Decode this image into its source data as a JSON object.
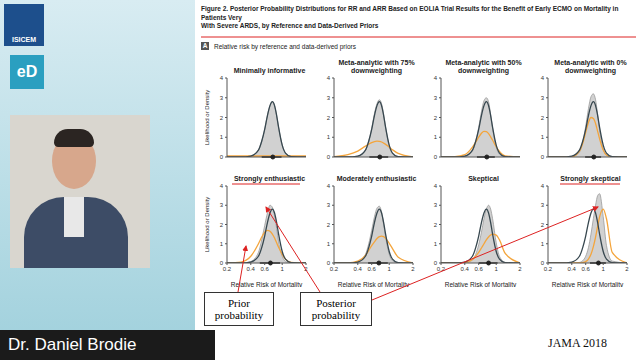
{
  "slide": {
    "logo": "ISICEM",
    "badge": "eD",
    "speaker": "Dr. Daniel Brodie",
    "figure_title": [
      "Figure 2. Posterior Probability Distributions for RR and ARR Based on EOLIA Trial Results for the Benefit of Early ECMO on Mortality in Patients Very",
      "With Severe ARDS, by Reference and Data-Derived Priors"
    ],
    "panel_label": "A",
    "panel_title": "Relative risk by reference and data-derived priors",
    "annotations": [
      "Prior probability",
      "Posterior probability"
    ],
    "source": "JAMA 2018"
  },
  "chart_data": [
    {
      "type": "line",
      "title": "Minimally informative",
      "x": [
        0.2,
        0.3,
        0.4,
        0.5,
        0.55,
        0.6,
        0.65,
        0.7,
        0.75,
        0.8,
        0.85,
        0.9,
        1.0,
        1.1,
        1.3,
        2.0
      ],
      "xlim": [
        0.2,
        2
      ],
      "xticks": [
        0.2,
        0.4,
        0.6,
        1,
        2
      ],
      "ylim": [
        0,
        4
      ],
      "yticks": [
        0,
        1,
        2,
        3,
        4
      ],
      "log": "x",
      "tick_labels": "y",
      "ylabel": "Likelihood or Density",
      "credible_interval": [
        0.55,
        0.98
      ],
      "median": 0.76,
      "series": [
        {
          "type": "area",
          "color": "#c9c9c9",
          "values": [
            0,
            0,
            0.05,
            0.35,
            0.8,
            1.4,
            2.1,
            2.6,
            2.8,
            2.6,
            2.1,
            1.5,
            0.6,
            0.2,
            0.02,
            0
          ]
        },
        {
          "type": "line",
          "color": "#f4a53c",
          "values": [
            0.05,
            0.05,
            0.05,
            0.05,
            0.05,
            0.05,
            0.05,
            0.05,
            0.05,
            0.05,
            0.05,
            0.05,
            0.05,
            0.05,
            0.05,
            0.05
          ]
        },
        {
          "type": "line",
          "color": "#37474f",
          "values": [
            0,
            0,
            0.05,
            0.35,
            0.8,
            1.4,
            2.1,
            2.6,
            2.8,
            2.6,
            2.1,
            1.5,
            0.6,
            0.2,
            0.02,
            0
          ]
        }
      ]
    },
    {
      "type": "line",
      "title": "Meta-analytic with 75% downweighting",
      "x": [
        0.2,
        0.3,
        0.4,
        0.5,
        0.55,
        0.6,
        0.65,
        0.7,
        0.75,
        0.8,
        0.85,
        0.9,
        1.0,
        1.1,
        1.3,
        2.0
      ],
      "xlim": [
        0.2,
        2
      ],
      "xticks": [
        0.2,
        0.4,
        0.6,
        1,
        2
      ],
      "ylim": [
        0,
        4
      ],
      "yticks": [
        0,
        1,
        2,
        3,
        4
      ],
      "log": "x",
      "tick_labels": "y",
      "credible_interval": [
        0.56,
        0.97
      ],
      "median": 0.76,
      "series": [
        {
          "type": "area",
          "color": "#c9c9c9",
          "values": [
            0,
            0,
            0.04,
            0.33,
            0.8,
            1.45,
            2.2,
            2.7,
            2.9,
            2.7,
            2.15,
            1.5,
            0.55,
            0.17,
            0.01,
            0
          ]
        },
        {
          "type": "line",
          "color": "#f4a53c",
          "values": [
            0.02,
            0.12,
            0.3,
            0.55,
            0.65,
            0.73,
            0.78,
            0.8,
            0.79,
            0.76,
            0.7,
            0.64,
            0.5,
            0.37,
            0.18,
            0.01
          ]
        },
        {
          "type": "line",
          "color": "#37474f",
          "values": [
            0,
            0,
            0.05,
            0.35,
            0.8,
            1.4,
            2.1,
            2.6,
            2.8,
            2.6,
            2.1,
            1.5,
            0.6,
            0.2,
            0.02,
            0
          ]
        }
      ]
    },
    {
      "type": "line",
      "title": "Meta-analytic with 50% downweighting",
      "x": [
        0.2,
        0.3,
        0.4,
        0.5,
        0.55,
        0.6,
        0.65,
        0.7,
        0.75,
        0.8,
        0.85,
        0.9,
        1.0,
        1.1,
        1.3,
        2.0
      ],
      "xlim": [
        0.2,
        2
      ],
      "xticks": [
        0.2,
        0.4,
        0.6,
        1,
        2
      ],
      "ylim": [
        0,
        4
      ],
      "yticks": [
        0,
        1,
        2,
        3,
        4
      ],
      "log": "x",
      "tick_labels": "y",
      "credible_interval": [
        0.57,
        0.96
      ],
      "median": 0.76,
      "series": [
        {
          "type": "area",
          "color": "#c9c9c9",
          "values": [
            0,
            0,
            0.03,
            0.3,
            0.8,
            1.5,
            2.3,
            2.85,
            3.0,
            2.8,
            2.15,
            1.45,
            0.5,
            0.14,
            0.01,
            0
          ]
        },
        {
          "type": "line",
          "color": "#f4a53c",
          "values": [
            0,
            0.02,
            0.12,
            0.5,
            0.75,
            1.0,
            1.2,
            1.3,
            1.28,
            1.18,
            1.02,
            0.85,
            0.52,
            0.28,
            0.06,
            0
          ]
        },
        {
          "type": "line",
          "color": "#37474f",
          "values": [
            0,
            0,
            0.05,
            0.35,
            0.8,
            1.4,
            2.1,
            2.6,
            2.8,
            2.6,
            2.1,
            1.5,
            0.6,
            0.2,
            0.02,
            0
          ]
        }
      ]
    },
    {
      "type": "line",
      "title": "Meta-analytic with 0% downweighting",
      "x": [
        0.2,
        0.3,
        0.4,
        0.5,
        0.55,
        0.6,
        0.65,
        0.7,
        0.75,
        0.8,
        0.85,
        0.9,
        1.0,
        1.1,
        1.3,
        2.0
      ],
      "xlim": [
        0.2,
        2
      ],
      "xticks": [
        0.2,
        0.4,
        0.6,
        1,
        2
      ],
      "ylim": [
        0,
        4
      ],
      "yticks": [
        0,
        1,
        2,
        3,
        4
      ],
      "log": "x",
      "tick_labels": "y",
      "credible_interval": [
        0.59,
        0.94
      ],
      "median": 0.76,
      "series": [
        {
          "type": "area",
          "color": "#c9c9c9",
          "values": [
            0,
            0,
            0.02,
            0.25,
            0.75,
            1.55,
            2.45,
            3.05,
            3.2,
            2.9,
            2.15,
            1.35,
            0.4,
            0.1,
            0,
            0
          ]
        },
        {
          "type": "line",
          "color": "#f4a53c",
          "values": [
            0,
            0,
            0.01,
            0.3,
            0.7,
            1.25,
            1.75,
            2.0,
            1.95,
            1.7,
            1.3,
            0.92,
            0.35,
            0.1,
            0,
            0
          ]
        },
        {
          "type": "line",
          "color": "#37474f",
          "values": [
            0,
            0,
            0.05,
            0.35,
            0.8,
            1.4,
            2.1,
            2.6,
            2.8,
            2.6,
            2.1,
            1.5,
            0.6,
            0.2,
            0.02,
            0
          ]
        }
      ]
    },
    {
      "type": "line",
      "title": "Strongly enthusiastic",
      "x": [
        0.2,
        0.3,
        0.4,
        0.5,
        0.55,
        0.6,
        0.65,
        0.7,
        0.75,
        0.8,
        0.85,
        0.9,
        1.0,
        1.1,
        1.3,
        2.0
      ],
      "xlim": [
        0.2,
        2
      ],
      "xticks": [
        0.2,
        0.4,
        0.6,
        1,
        2
      ],
      "ylim": [
        0,
        4
      ],
      "yticks": [
        0,
        1,
        2,
        3,
        4
      ],
      "log": "x",
      "tick_labels": true,
      "ylabel": "Likelihood or Density",
      "xlabel": "Relative Risk of Mortality",
      "credible_interval": [
        0.52,
        0.94
      ],
      "median": 0.71,
      "series": [
        {
          "type": "area",
          "color": "#c9c9c9",
          "values": [
            0,
            0,
            0.08,
            0.55,
            1.2,
            1.95,
            2.6,
            3.0,
            2.9,
            2.45,
            1.8,
            1.1,
            0.35,
            0.08,
            0,
            0
          ]
        },
        {
          "type": "line",
          "color": "#f4a53c",
          "values": [
            0,
            0.05,
            0.35,
            1.0,
            1.35,
            1.6,
            1.7,
            1.65,
            1.5,
            1.3,
            1.05,
            0.82,
            0.45,
            0.2,
            0.03,
            0
          ]
        },
        {
          "type": "line",
          "color": "#37474f",
          "values": [
            0,
            0,
            0.05,
            0.35,
            0.8,
            1.4,
            2.1,
            2.6,
            2.8,
            2.6,
            2.1,
            1.5,
            0.6,
            0.2,
            0.02,
            0
          ]
        }
      ]
    },
    {
      "type": "line",
      "title": "Moderately enthusiastic",
      "x": [
        0.2,
        0.3,
        0.4,
        0.5,
        0.55,
        0.6,
        0.65,
        0.7,
        0.75,
        0.8,
        0.85,
        0.9,
        1.0,
        1.1,
        1.3,
        2.0
      ],
      "xlim": [
        0.2,
        2
      ],
      "xticks": [
        0.2,
        0.4,
        0.6,
        1,
        2
      ],
      "ylim": [
        0,
        4
      ],
      "yticks": [
        0,
        1,
        2,
        3,
        4
      ],
      "log": "x",
      "tick_labels": true,
      "xlabel": "Relative Risk of Mortality",
      "credible_interval": [
        0.54,
        0.96
      ],
      "median": 0.74,
      "series": [
        {
          "type": "area",
          "color": "#c9c9c9",
          "values": [
            0,
            0,
            0.06,
            0.45,
            1.0,
            1.7,
            2.4,
            2.85,
            2.95,
            2.65,
            2.0,
            1.35,
            0.45,
            0.12,
            0.01,
            0
          ]
        },
        {
          "type": "line",
          "color": "#f4a53c",
          "values": [
            0,
            0.01,
            0.1,
            0.4,
            0.65,
            0.9,
            1.1,
            1.27,
            1.37,
            1.4,
            1.37,
            1.28,
            1.02,
            0.75,
            0.3,
            0.01
          ]
        },
        {
          "type": "line",
          "color": "#37474f",
          "values": [
            0,
            0,
            0.05,
            0.35,
            0.8,
            1.4,
            2.1,
            2.6,
            2.8,
            2.6,
            2.1,
            1.5,
            0.6,
            0.2,
            0.02,
            0
          ]
        }
      ]
    },
    {
      "type": "line",
      "title": "Skeptical",
      "x": [
        0.2,
        0.3,
        0.4,
        0.5,
        0.55,
        0.6,
        0.65,
        0.7,
        0.75,
        0.8,
        0.85,
        0.9,
        1.0,
        1.1,
        1.3,
        2.0
      ],
      "xlim": [
        0.2,
        2
      ],
      "xticks": [
        0.2,
        0.4,
        0.6,
        1,
        2
      ],
      "ylim": [
        0,
        4
      ],
      "yticks": [
        0,
        1,
        2,
        3,
        4
      ],
      "log": "x",
      "tick_labels": true,
      "xlabel": "Relative Risk of Mortality",
      "credible_interval": [
        0.6,
        1.04
      ],
      "median": 0.8,
      "series": [
        {
          "type": "area",
          "color": "#c9c9c9",
          "values": [
            0,
            0,
            0.01,
            0.15,
            0.45,
            0.95,
            1.6,
            2.3,
            2.8,
            3.0,
            2.8,
            2.3,
            1.05,
            0.35,
            0.03,
            0
          ]
        },
        {
          "type": "line",
          "color": "#f4a53c",
          "values": [
            0,
            0,
            0.02,
            0.18,
            0.35,
            0.55,
            0.78,
            1.0,
            1.2,
            1.35,
            1.45,
            1.5,
            1.45,
            1.2,
            0.5,
            0.01
          ]
        },
        {
          "type": "line",
          "color": "#37474f",
          "values": [
            0,
            0,
            0.05,
            0.35,
            0.8,
            1.4,
            2.1,
            2.6,
            2.8,
            2.6,
            2.1,
            1.5,
            0.6,
            0.2,
            0.02,
            0
          ]
        }
      ]
    },
    {
      "type": "line",
      "title": "Strongly skeptical",
      "x": [
        0.2,
        0.3,
        0.4,
        0.5,
        0.55,
        0.6,
        0.65,
        0.7,
        0.75,
        0.8,
        0.85,
        0.9,
        1.0,
        1.1,
        1.3,
        2.0
      ],
      "xlim": [
        0.2,
        2
      ],
      "xticks": [
        0.2,
        0.4,
        0.6,
        1,
        2
      ],
      "ylim": [
        0,
        4
      ],
      "yticks": [
        0,
        1,
        2,
        3,
        4
      ],
      "log": "x",
      "tick_labels": true,
      "xlabel": "Relative Risk of Mortality",
      "credible_interval": [
        0.68,
        1.08
      ],
      "median": 0.87,
      "series": [
        {
          "type": "area",
          "color": "#c9c9c9",
          "values": [
            0,
            0,
            0,
            0.03,
            0.12,
            0.35,
            0.8,
            1.5,
            2.3,
            3.0,
            3.5,
            3.6,
            2.4,
            0.9,
            0.1,
            0
          ]
        },
        {
          "type": "line",
          "color": "#f4a53c",
          "values": [
            0,
            0,
            0,
            0,
            0.02,
            0.07,
            0.2,
            0.45,
            0.85,
            1.35,
            1.9,
            2.4,
            2.8,
            2.3,
            0.55,
            0
          ]
        },
        {
          "type": "line",
          "color": "#37474f",
          "values": [
            0,
            0,
            0.05,
            0.35,
            0.8,
            1.4,
            2.1,
            2.6,
            2.8,
            2.6,
            2.1,
            1.5,
            0.6,
            0.2,
            0.02,
            0
          ]
        }
      ]
    }
  ]
}
